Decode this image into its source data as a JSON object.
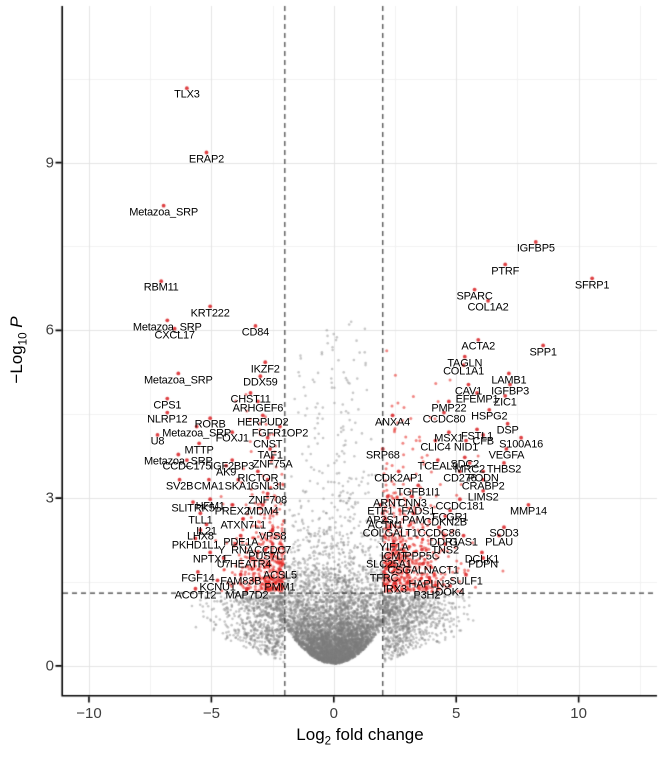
{
  "chart_data": {
    "type": "scatter",
    "subtype": "volcano-plot",
    "title": "",
    "xlabel": {
      "base": "Log",
      "sub": "2",
      "rest": " fold change"
    },
    "ylabel": {
      "base": "−Log",
      "sub": "10",
      "rest": "P"
    },
    "x_axis": {
      "min": -11.06,
      "max": 13.2,
      "ticks": [
        -10,
        -5,
        0,
        5,
        10
      ],
      "tick_labels": [
        "−10",
        "−5",
        "0",
        "5",
        "10"
      ],
      "minor_ticks": [
        -7.5,
        -2.5,
        2.5,
        7.5,
        12.5
      ]
    },
    "y_axis": {
      "min": -0.52,
      "max": 11.8,
      "ticks": [
        0,
        3,
        6,
        9
      ],
      "tick_labels": [
        "0",
        "3",
        "6",
        "9"
      ],
      "minor_ticks": [
        1.5,
        4.5,
        7.5,
        10.5
      ]
    },
    "grid": true,
    "legend": false,
    "thresholds": {
      "log2fc_cutoffs": [
        -2,
        2
      ],
      "neg_log10_p_cutoff": 1.301,
      "line_style": "dashed"
    },
    "series": [
      {
        "name": "non-significant",
        "color": "#a8a8a8",
        "alpha": 0.45
      },
      {
        "name": "significant",
        "color": "#e3211c",
        "alpha": 0.6
      }
    ],
    "background_cloud": {
      "gray_bulk": {
        "n": 5200,
        "x_sd": 1.05,
        "envelope_a": 0.04,
        "envelope_b": 0.17,
        "y_exp_mean": 0.5,
        "y_max": 6.4
      },
      "gray_wings": {
        "n": 1500,
        "x_spread": 1.35,
        "x_min_abs": 2.02,
        "x_max_abs": 5.8,
        "left_fraction": 0.44,
        "y_top": 1.26
      },
      "gray_high": {
        "n": 240,
        "x_sd": 0.85,
        "x_max_abs": 1.95,
        "y_min": 1.5,
        "y_range": 4.7,
        "y_pow": 1.7
      },
      "red_left": {
        "n": 400,
        "x_edge": -2.03,
        "x_spread": 1.0,
        "x_min": -7.9,
        "y_base": 1.33,
        "y_exp_mean": 0.72,
        "y_max": 5.45
      },
      "red_right": {
        "n": 545,
        "x_edge": 2.03,
        "x_spread": 1.25,
        "x_max": 8.6,
        "y_base": 1.33,
        "y_exp_mean": 0.8,
        "y_max": 5.9
      }
    },
    "labeled_genes_format": [
      "gene",
      "log2_fold_change",
      "neg_log10_p_label_pos"
    ],
    "labeled_genes": [
      [
        "TLX3",
        -6.0,
        10.2
      ],
      [
        "ERAP2",
        -5.2,
        9.05
      ],
      [
        "Metazoa_SRP",
        -6.95,
        8.1
      ],
      [
        "RBM11",
        -7.05,
        6.75
      ],
      [
        "KRT222",
        -5.05,
        6.3
      ],
      [
        "Metazoa_SRP",
        -6.8,
        6.05
      ],
      [
        "CXCL17",
        -6.5,
        5.9
      ],
      [
        "CD84",
        -3.2,
        5.95
      ],
      [
        "IKZF2",
        -2.8,
        5.3
      ],
      [
        "DDX59",
        -3.0,
        5.05
      ],
      [
        "Metazoa_SRP",
        -6.35,
        5.1
      ],
      [
        "CPS1",
        -6.8,
        4.65
      ],
      [
        "CHST11",
        -3.4,
        4.75
      ],
      [
        "ARHGEF6",
        -3.1,
        4.6
      ],
      [
        "NLRP12",
        -6.8,
        4.4
      ],
      [
        "RORB",
        -5.05,
        4.3
      ],
      [
        "HERPUD2",
        -2.9,
        4.35
      ],
      [
        "Metazoa_SRP",
        -5.6,
        4.15
      ],
      [
        "FGFR1OP2",
        -2.2,
        4.15
      ],
      [
        "FOXJ1",
        -4.15,
        4.05
      ],
      [
        "U8",
        -7.2,
        4.0
      ],
      [
        "CNST",
        -2.7,
        3.95
      ],
      [
        "MTTP",
        -5.5,
        3.85
      ],
      [
        "TAF1",
        -2.6,
        3.75
      ],
      [
        "Metazoa_SRP",
        -6.35,
        3.65
      ],
      [
        "ZNF75A",
        -2.5,
        3.6
      ],
      [
        "CCDC175",
        -6.0,
        3.55
      ],
      [
        "IGF2BP3",
        -4.15,
        3.55
      ],
      [
        "AK9",
        -4.4,
        3.45
      ],
      [
        "RICTOR",
        -3.1,
        3.35
      ],
      [
        "SV2B",
        -6.3,
        3.2
      ],
      [
        "CMA1",
        -5.1,
        3.2
      ],
      [
        "SKA1",
        -3.9,
        3.2
      ],
      [
        "GNL3L",
        -2.7,
        3.2
      ],
      [
        "ZNF708",
        -2.7,
        2.95
      ],
      [
        "HFM1",
        -5.05,
        2.85
      ],
      [
        "SLITRK5",
        -5.75,
        2.8
      ],
      [
        "PREX2",
        -4.15,
        2.75
      ],
      [
        "MDM4",
        -2.9,
        2.75
      ],
      [
        "TLL1",
        -5.45,
        2.6
      ],
      [
        "ATXN7L1",
        -3.7,
        2.5
      ],
      [
        "IL21",
        -5.2,
        2.4
      ],
      [
        "LHX8",
        -5.45,
        2.3
      ],
      [
        "VPS8",
        -2.5,
        2.3
      ],
      [
        "PKHD1L1",
        -5.65,
        2.15
      ],
      [
        "PDE1A",
        -3.8,
        2.2
      ],
      [
        "Y_RNA",
        -4.0,
        2.05
      ],
      [
        "CCDC7",
        -2.5,
        2.05
      ],
      [
        "NPTX1",
        -5.05,
        1.9
      ],
      [
        "PUS7L",
        -2.8,
        1.95
      ],
      [
        "U7",
        -4.5,
        1.8
      ],
      [
        "HEATR4",
        -3.4,
        1.8
      ],
      [
        "FGF14",
        -5.55,
        1.55
      ],
      [
        "FAM83B",
        -3.8,
        1.5
      ],
      [
        "ACSL5",
        -2.2,
        1.6
      ],
      [
        "KCNU1",
        -4.75,
        1.4
      ],
      [
        "PMM1",
        -2.2,
        1.4
      ],
      [
        "ACOT12",
        -5.65,
        1.25
      ],
      [
        "MAP7D2",
        -3.55,
        1.25
      ],
      [
        "IGFBP5",
        8.25,
        7.45
      ],
      [
        "PTRF",
        7.0,
        7.05
      ],
      [
        "SFRP1",
        10.55,
        6.8
      ],
      [
        "SPARC",
        5.75,
        6.6
      ],
      [
        "COL1A2",
        6.3,
        6.4
      ],
      [
        "ACTA2",
        5.9,
        5.7
      ],
      [
        "SPP1",
        8.55,
        5.6
      ],
      [
        "TAGLN",
        5.35,
        5.4
      ],
      [
        "COL1A1",
        5.3,
        5.25
      ],
      [
        "LAMB1",
        7.15,
        5.1
      ],
      [
        "CAV1",
        5.5,
        4.9
      ],
      [
        "IGFBP3",
        7.2,
        4.9
      ],
      [
        "EFEMP1",
        5.85,
        4.75
      ],
      [
        "ZIC1",
        7.0,
        4.7
      ],
      [
        "PMP22",
        4.7,
        4.6
      ],
      [
        "CCDC80",
        4.5,
        4.4
      ],
      [
        "HSPG2",
        6.35,
        4.45
      ],
      [
        "ANXA4",
        2.4,
        4.35
      ],
      [
        "DSP",
        7.1,
        4.2
      ],
      [
        "MSX1",
        4.7,
        4.05
      ],
      [
        "FSTL1",
        5.85,
        4.1
      ],
      [
        "CFB",
        6.1,
        4.0
      ],
      [
        "S100A16",
        7.65,
        3.95
      ],
      [
        "CLIC4",
        4.15,
        3.9
      ],
      [
        "NID1",
        5.4,
        3.9
      ],
      [
        "SRP68",
        2.0,
        3.75
      ],
      [
        "VEGFA",
        7.05,
        3.75
      ],
      [
        "TCEAL9",
        4.25,
        3.55
      ],
      [
        "SDC2",
        5.35,
        3.6
      ],
      [
        "MRC2",
        5.55,
        3.5
      ],
      [
        "THBS2",
        6.95,
        3.5
      ],
      [
        "CDK2AP1",
        2.65,
        3.35
      ],
      [
        "CD276",
        5.15,
        3.35
      ],
      [
        "PODN",
        6.1,
        3.35
      ],
      [
        "CRABP2",
        6.1,
        3.2
      ],
      [
        "TGFB1I1",
        3.45,
        3.1
      ],
      [
        "LIMS2",
        6.1,
        3.0
      ],
      [
        "ARNT",
        2.2,
        2.9
      ],
      [
        "CNN3",
        3.2,
        2.9
      ],
      [
        "CCDC181",
        5.15,
        2.85
      ],
      [
        "MMP14",
        7.95,
        2.75
      ],
      [
        "ETF1",
        1.9,
        2.75
      ],
      [
        "FADS1",
        3.45,
        2.75
      ],
      [
        "FCGR1",
        4.75,
        2.65
      ],
      [
        "AP2S1",
        2.0,
        2.6
      ],
      [
        "PAM",
        3.25,
        2.6
      ],
      [
        "CDKN2B",
        4.55,
        2.55
      ],
      [
        "ACTN1",
        2.1,
        2.5
      ],
      [
        "COLGALT1",
        2.3,
        2.35
      ],
      [
        "CCDC86",
        4.3,
        2.35
      ],
      [
        "SOD3",
        6.95,
        2.35
      ],
      [
        "DDR1",
        4.5,
        2.2
      ],
      [
        "GAS1",
        5.3,
        2.2
      ],
      [
        "PLAU",
        6.75,
        2.2
      ],
      [
        "YIF1A",
        2.45,
        2.1
      ],
      [
        "TNS2",
        4.55,
        2.05
      ],
      [
        "ICMT",
        2.45,
        1.95
      ],
      [
        "PPP5C",
        3.6,
        1.95
      ],
      [
        "DCLK1",
        6.05,
        1.9
      ],
      [
        "SLC25A1",
        2.25,
        1.8
      ],
      [
        "PDPN",
        6.1,
        1.8
      ],
      [
        "CSGALNACT1",
        3.65,
        1.7
      ],
      [
        "TFRC",
        2.05,
        1.55
      ],
      [
        "HAPLN3",
        3.9,
        1.45
      ],
      [
        "SULF1",
        5.4,
        1.5
      ],
      [
        "IRX3",
        2.5,
        1.35
      ],
      [
        "P3H2",
        3.8,
        1.25
      ],
      [
        "DOK4",
        4.75,
        1.3
      ]
    ]
  },
  "colors": {
    "background": "#ffffff",
    "grid_major": "#e4e4e4",
    "grid_minor": "#f2f2f2",
    "axis_line": "#000000",
    "tick_text": "#404040",
    "threshold_line": "#3c3c3c",
    "gray_point": "#a8a8a8",
    "red_point": "#e3211c",
    "labeled_point": "#d81f22",
    "gene_label_text": "#000000"
  }
}
